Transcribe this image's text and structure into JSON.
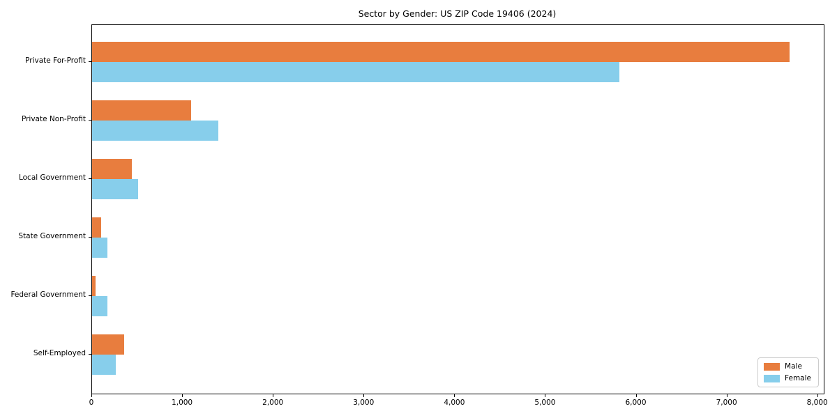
{
  "chart_data": {
    "type": "bar",
    "orientation": "horizontal",
    "title": "Sector by Gender: US ZIP Code 19406 (2024)",
    "categories": [
      "Private For-Profit",
      "Private Non-Profit",
      "Local Government",
      "State Government",
      "Federal Government",
      "Self-Employed"
    ],
    "series": [
      {
        "name": "Male",
        "color": "#e87d3e",
        "values": [
          7690,
          1095,
          440,
          100,
          40,
          350
        ]
      },
      {
        "name": "Female",
        "color": "#87ceeb",
        "values": [
          5810,
          1390,
          510,
          170,
          170,
          265
        ]
      }
    ],
    "xlabel": "",
    "ylabel": "",
    "x_ticks": [
      0,
      1000,
      2000,
      3000,
      4000,
      5000,
      6000,
      7000,
      8000
    ],
    "x_tick_labels": [
      "0",
      "1,000",
      "2,000",
      "3,000",
      "4,000",
      "5,000",
      "6,000",
      "7,000",
      "8,000"
    ],
    "xlim": [
      0,
      8064
    ],
    "grid": false,
    "legend_position": "lower right",
    "colors": {
      "male": "#e87d3e",
      "female": "#87ceeb",
      "axis": "#000000",
      "legend_border": "#cccccc"
    }
  }
}
